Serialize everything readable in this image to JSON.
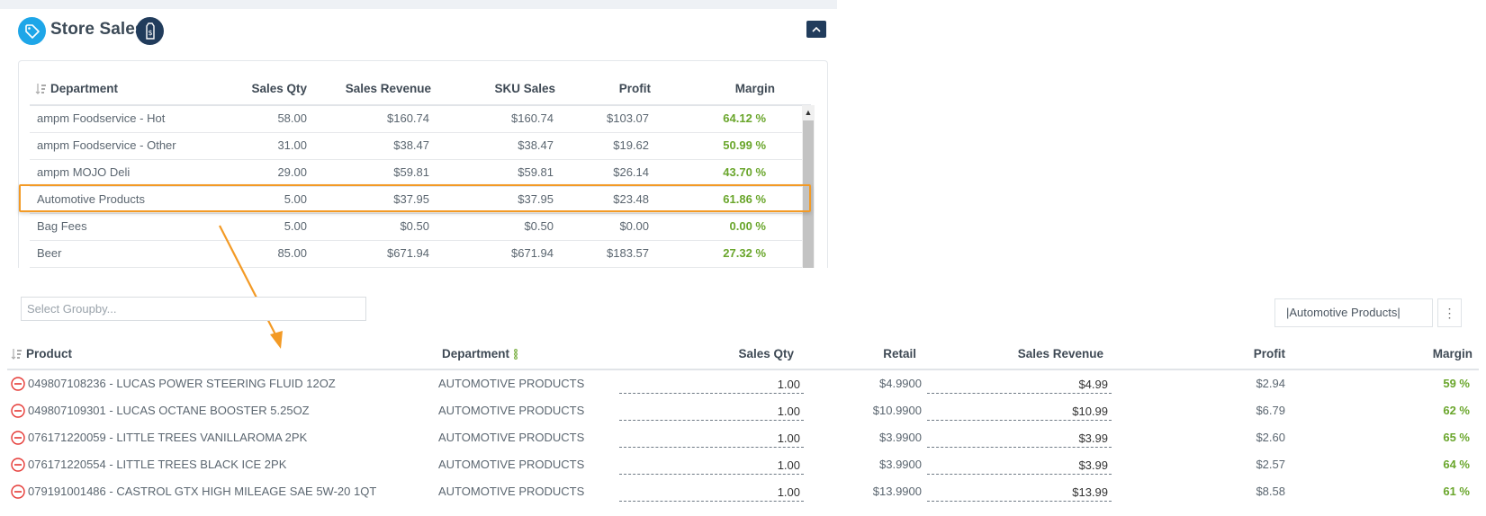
{
  "header": {
    "title": "Store Sales"
  },
  "dept_table": {
    "columns": [
      "Department",
      "Sales Qty",
      "Sales Revenue",
      "SKU Sales",
      "Profit",
      "Margin"
    ],
    "rows": [
      {
        "department": "ampm Foodservice - Hot",
        "qty": "58.00",
        "revenue": "$160.74",
        "sku": "$160.74",
        "profit": "$103.07",
        "margin": "64.12 %"
      },
      {
        "department": "ampm Foodservice - Other",
        "qty": "31.00",
        "revenue": "$38.47",
        "sku": "$38.47",
        "profit": "$19.62",
        "margin": "50.99 %"
      },
      {
        "department": "ampm MOJO Deli",
        "qty": "29.00",
        "revenue": "$59.81",
        "sku": "$59.81",
        "profit": "$26.14",
        "margin": "43.70 %"
      },
      {
        "department": "Automotive Products",
        "qty": "5.00",
        "revenue": "$37.95",
        "sku": "$37.95",
        "profit": "$23.48",
        "margin": "61.86 %"
      },
      {
        "department": "Bag Fees",
        "qty": "5.00",
        "revenue": "$0.50",
        "sku": "$0.50",
        "profit": "$0.00",
        "margin": "0.00 %"
      },
      {
        "department": "Beer",
        "qty": "85.00",
        "revenue": "$671.94",
        "sku": "$671.94",
        "profit": "$183.57",
        "margin": "27.32 %"
      }
    ]
  },
  "groupby": {
    "placeholder": "Select Groupby..."
  },
  "filter": {
    "label": "|Automotive Products|"
  },
  "kebab": {
    "glyph": "⋮"
  },
  "product_table": {
    "columns": [
      "Product",
      "Department",
      "Sales Qty",
      "Retail",
      "Sales Revenue",
      "Profit",
      "Margin"
    ],
    "rows": [
      {
        "product": "049807108236 - LUCAS POWER STEERING FLUID 12OZ",
        "department": "AUTOMOTIVE PRODUCTS",
        "qty": "1.00",
        "retail": "$4.9900",
        "revenue": "$4.99",
        "profit": "$2.94",
        "margin": "59 %"
      },
      {
        "product": "049807109301 - LUCAS OCTANE BOOSTER 5.25OZ",
        "department": "AUTOMOTIVE PRODUCTS",
        "qty": "1.00",
        "retail": "$10.9900",
        "revenue": "$10.99",
        "profit": "$6.79",
        "margin": "62 %"
      },
      {
        "product": "076171220059 - LITTLE TREES VANILLAROMA 2PK",
        "department": "AUTOMOTIVE PRODUCTS",
        "qty": "1.00",
        "retail": "$3.9900",
        "revenue": "$3.99",
        "profit": "$2.60",
        "margin": "65 %"
      },
      {
        "product": "076171220554 - LITTLE TREES BLACK ICE 2PK",
        "department": "AUTOMOTIVE PRODUCTS",
        "qty": "1.00",
        "retail": "$3.9900",
        "revenue": "$3.99",
        "profit": "$2.57",
        "margin": "64 %"
      },
      {
        "product": "079191001486 - CASTROL GTX HIGH MILEAGE SAE 5W-20 1QT",
        "department": "AUTOMOTIVE PRODUCTS",
        "qty": "1.00",
        "retail": "$13.9900",
        "revenue": "$13.99",
        "profit": "$8.58",
        "margin": "61 %"
      }
    ]
  },
  "colors": {
    "accent_blue": "#1ea6e8",
    "navy": "#213c5c",
    "highlight_orange": "#f39a25",
    "margin_green": "#6aa62c",
    "remove_red": "#e53935"
  },
  "icons": [
    "tag-icon",
    "price-tag-dollar-icon",
    "chevron-up-icon",
    "sort-icon",
    "column-menu-icon",
    "remove-icon",
    "kebab-menu-icon"
  ]
}
